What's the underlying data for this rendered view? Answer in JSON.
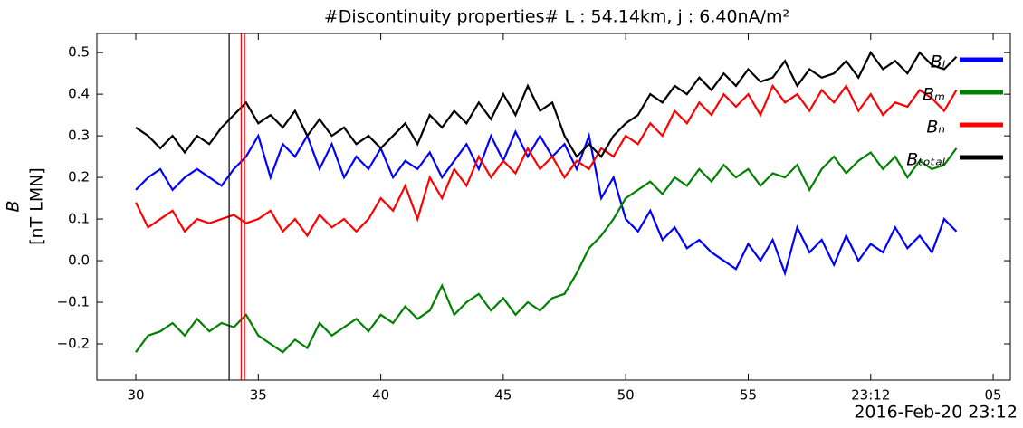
{
  "chart_data": {
    "type": "line",
    "title": "#Discontinuity properties# L : 54.14km, j : 6.40nA/m²",
    "ylabel": "B",
    "ylabel_unit": "[nT LMN]",
    "xlabel": "2016-Feb-20 23:12",
    "x": [
      30,
      30.5,
      31,
      31.5,
      32,
      32.5,
      33,
      33.5,
      34,
      34.5,
      35,
      35.5,
      36,
      36.5,
      37,
      37.5,
      38,
      38.5,
      39,
      39.5,
      40,
      40.5,
      41,
      41.5,
      42,
      42.5,
      43,
      43.5,
      44,
      44.5,
      45,
      45.5,
      46,
      46.5,
      47,
      47.5,
      48,
      48.5,
      49,
      49.5,
      50,
      50.5,
      51,
      51.5,
      52,
      52.5,
      53,
      53.5,
      54,
      54.5,
      55,
      55.5,
      56,
      56.5,
      57,
      57.5,
      58,
      58.5,
      59,
      59.5,
      60,
      60.5,
      61,
      61.5,
      62,
      62.5,
      63,
      63.5
    ],
    "series": [
      {
        "name": "Bₗ",
        "color": "#0000ff",
        "values": [
          0.17,
          0.2,
          0.22,
          0.17,
          0.2,
          0.22,
          0.2,
          0.18,
          0.22,
          0.25,
          0.3,
          0.2,
          0.28,
          0.25,
          0.3,
          0.22,
          0.28,
          0.2,
          0.25,
          0.22,
          0.27,
          0.2,
          0.24,
          0.22,
          0.26,
          0.2,
          0.24,
          0.28,
          0.22,
          0.3,
          0.24,
          0.31,
          0.25,
          0.3,
          0.25,
          0.28,
          0.22,
          0.3,
          0.15,
          0.2,
          0.1,
          0.07,
          0.12,
          0.05,
          0.08,
          0.03,
          0.05,
          0.02,
          0.0,
          -0.02,
          0.04,
          0.0,
          0.05,
          -0.03,
          0.08,
          0.02,
          0.05,
          -0.01,
          0.06,
          0.0,
          0.04,
          0.02,
          0.08,
          0.03,
          0.06,
          0.02,
          0.1,
          0.07
        ]
      },
      {
        "name": "Bₘ",
        "color": "#008000",
        "values": [
          -0.22,
          -0.18,
          -0.17,
          -0.15,
          -0.18,
          -0.14,
          -0.17,
          -0.15,
          -0.16,
          -0.13,
          -0.18,
          -0.2,
          -0.22,
          -0.19,
          -0.21,
          -0.15,
          -0.18,
          -0.16,
          -0.14,
          -0.17,
          -0.13,
          -0.15,
          -0.11,
          -0.14,
          -0.12,
          -0.06,
          -0.13,
          -0.1,
          -0.08,
          -0.12,
          -0.09,
          -0.13,
          -0.1,
          -0.12,
          -0.09,
          -0.08,
          -0.03,
          0.03,
          0.06,
          0.1,
          0.15,
          0.17,
          0.19,
          0.16,
          0.2,
          0.18,
          0.22,
          0.19,
          0.23,
          0.2,
          0.22,
          0.18,
          0.21,
          0.2,
          0.23,
          0.17,
          0.22,
          0.25,
          0.21,
          0.24,
          0.26,
          0.22,
          0.25,
          0.2,
          0.24,
          0.22,
          0.23,
          0.27
        ]
      },
      {
        "name": "Bₙ",
        "color": "#ff0000",
        "values": [
          0.14,
          0.08,
          0.1,
          0.12,
          0.07,
          0.1,
          0.09,
          0.1,
          0.11,
          0.09,
          0.1,
          0.12,
          0.07,
          0.1,
          0.06,
          0.11,
          0.08,
          0.1,
          0.07,
          0.1,
          0.15,
          0.12,
          0.18,
          0.1,
          0.2,
          0.15,
          0.22,
          0.18,
          0.25,
          0.2,
          0.24,
          0.21,
          0.27,
          0.22,
          0.25,
          0.2,
          0.24,
          0.22,
          0.27,
          0.25,
          0.3,
          0.28,
          0.33,
          0.3,
          0.36,
          0.33,
          0.38,
          0.35,
          0.4,
          0.37,
          0.4,
          0.35,
          0.42,
          0.38,
          0.4,
          0.36,
          0.41,
          0.38,
          0.42,
          0.36,
          0.4,
          0.35,
          0.38,
          0.37,
          0.41,
          0.39,
          0.36,
          0.41
        ]
      },
      {
        "name": "Bₜₒₜₐₗ",
        "color": "#000000",
        "values": [
          0.32,
          0.3,
          0.27,
          0.3,
          0.26,
          0.3,
          0.28,
          0.32,
          0.35,
          0.38,
          0.33,
          0.35,
          0.32,
          0.36,
          0.3,
          0.34,
          0.3,
          0.32,
          0.28,
          0.3,
          0.27,
          0.3,
          0.33,
          0.28,
          0.35,
          0.32,
          0.36,
          0.33,
          0.38,
          0.34,
          0.4,
          0.35,
          0.42,
          0.36,
          0.38,
          0.3,
          0.25,
          0.28,
          0.25,
          0.3,
          0.33,
          0.35,
          0.4,
          0.38,
          0.42,
          0.4,
          0.44,
          0.41,
          0.45,
          0.42,
          0.46,
          0.43,
          0.44,
          0.48,
          0.42,
          0.46,
          0.44,
          0.45,
          0.48,
          0.44,
          0.5,
          0.46,
          0.48,
          0.45,
          0.5,
          0.47,
          0.46,
          0.49
        ]
      }
    ],
    "vlines": [
      {
        "x": 33.81,
        "color": "#000000"
      },
      {
        "x": 34.3,
        "color": "#ff0000"
      },
      {
        "x": 34.44,
        "color": "#ff0000"
      }
    ],
    "xlim": [
      28.41,
      65.7
    ],
    "ylim": [
      -0.287,
      0.546
    ],
    "xticks": [
      30,
      35,
      40,
      45,
      50,
      55,
      {
        "value": 60,
        "label": "23:12"
      },
      {
        "value": 65,
        "label": "05"
      }
    ],
    "yticks": [
      {
        "value": -0.2,
        "label": "−0.2"
      },
      {
        "value": -0.1,
        "label": "−0.1"
      },
      {
        "value": 0,
        "label": "0.0"
      },
      0.1,
      0.2,
      0.3,
      0.4,
      0.5
    ],
    "legend": "upper right"
  }
}
